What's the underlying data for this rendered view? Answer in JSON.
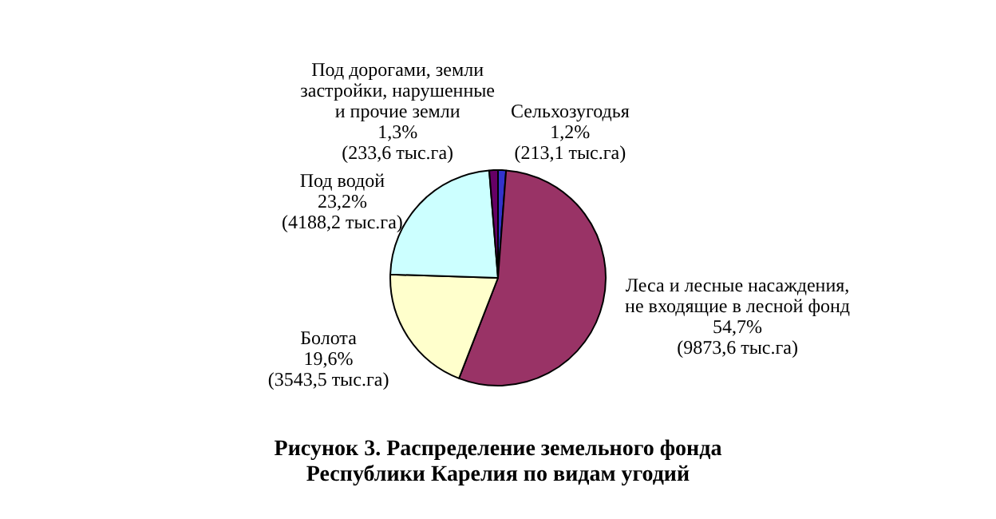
{
  "chart_data": {
    "type": "pie",
    "title": "Рисунок 3.  Распределение земельного фонда  Республики Карелия по видам угодий",
    "categories": [
      "Сельхозугодья",
      "Леса и лесные насаждения, не входящие в лесной фонд",
      "Болота",
      "Под водой",
      "Под дорогами, земли застройки, нарушенные и прочие земли"
    ],
    "values": [
      1.2,
      54.7,
      19.6,
      23.2,
      1.3
    ],
    "value_labels": [
      "1,2%\n(213,1 тыс.га)",
      "54,7%\n(9873,6 тыс.га)",
      "19,6%\n(3543,5 тыс.га)",
      "23,2%\n(4188,2 тыс.га)",
      "1,3%\n(233,6 тыс.га)"
    ],
    "colors": [
      "#3333cc",
      "#993366",
      "#ffffcc",
      "#ccffff",
      "#660066"
    ],
    "legend": false
  }
}
